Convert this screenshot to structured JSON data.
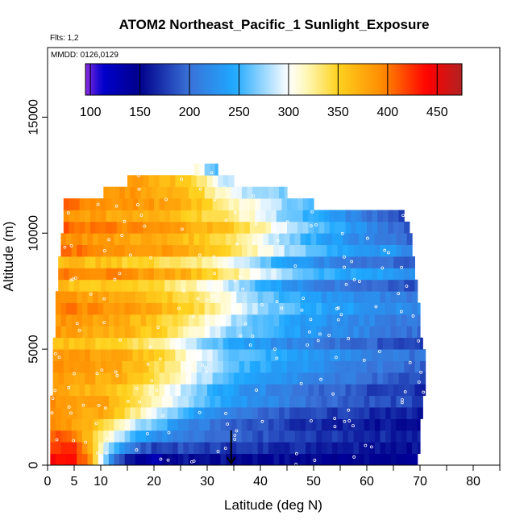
{
  "chart_data": {
    "type": "heatmap",
    "title": "ATOM2 Northeast_Pacific_1 Sunlight_Exposure",
    "flights_note": "Flts: 1,2",
    "dates_note": "MMDD: 0126,0129",
    "xlabel": "Latitude (deg N)",
    "ylabel": "Altitude (m)",
    "xlim": [
      0,
      85
    ],
    "ylim": [
      0,
      18000
    ],
    "x_ticks": [
      0,
      5,
      10,
      20,
      30,
      40,
      50,
      60,
      70,
      80
    ],
    "x_minor_ticks": [
      15,
      25,
      35,
      45,
      55,
      65,
      75,
      85
    ],
    "y_ticks": [
      0,
      5000,
      10000,
      15000
    ],
    "grid": false,
    "colorbar": {
      "position": "top-inset",
      "ticks": [
        100,
        150,
        200,
        250,
        300,
        350,
        400,
        450
      ],
      "range": [
        95,
        475
      ],
      "stops": [
        {
          "v": 95,
          "c": "#8B2BE2"
        },
        {
          "v": 112,
          "c": "#0000CD"
        },
        {
          "v": 150,
          "c": "#00008B"
        },
        {
          "v": 200,
          "c": "#3A72D8"
        },
        {
          "v": 245,
          "c": "#1EA8FF"
        },
        {
          "v": 300,
          "c": "#FFFFFF"
        },
        {
          "v": 320,
          "c": "#FFF6B0"
        },
        {
          "v": 350,
          "c": "#FFD21E"
        },
        {
          "v": 395,
          "c": "#FF8A00"
        },
        {
          "v": 440,
          "c": "#FF0000"
        },
        {
          "v": 475,
          "c": "#B22222"
        }
      ]
    },
    "field": {
      "bands": [
        {
          "alt": [
            0,
            500
          ],
          "lat": [
            0.5,
            69.5
          ]
        },
        {
          "alt": [
            500,
            1000
          ],
          "lat": [
            0.5,
            70
          ]
        },
        {
          "alt": [
            1000,
            1500
          ],
          "lat": [
            0.5,
            70
          ]
        },
        {
          "alt": [
            1500,
            2000
          ],
          "lat": [
            0.5,
            70
          ]
        },
        {
          "alt": [
            2000,
            2500
          ],
          "lat": [
            0.5,
            70.5
          ]
        },
        {
          "alt": [
            2500,
            3000
          ],
          "lat": [
            0.5,
            70.5
          ]
        },
        {
          "alt": [
            3000,
            3500
          ],
          "lat": [
            1,
            71
          ]
        },
        {
          "alt": [
            3500,
            4000
          ],
          "lat": [
            1,
            71
          ]
        },
        {
          "alt": [
            4000,
            4500
          ],
          "lat": [
            1,
            71
          ]
        },
        {
          "alt": [
            4500,
            5000
          ],
          "lat": [
            1,
            71
          ]
        },
        {
          "alt": [
            5000,
            5500
          ],
          "lat": [
            1,
            70.5
          ]
        },
        {
          "alt": [
            5500,
            6000
          ],
          "lat": [
            1.5,
            70
          ]
        },
        {
          "alt": [
            6000,
            6500
          ],
          "lat": [
            1.5,
            70
          ]
        },
        {
          "alt": [
            6500,
            7000
          ],
          "lat": [
            1.5,
            70
          ]
        },
        {
          "alt": [
            7000,
            7500
          ],
          "lat": [
            1.5,
            69.5
          ]
        },
        {
          "alt": [
            7500,
            8000
          ],
          "lat": [
            2,
            69.5
          ]
        },
        {
          "alt": [
            8000,
            8500
          ],
          "lat": [
            2,
            69
          ]
        },
        {
          "alt": [
            8500,
            9000
          ],
          "lat": [
            2,
            69
          ]
        },
        {
          "alt": [
            9000,
            9500
          ],
          "lat": [
            2.5,
            68.5
          ]
        },
        {
          "alt": [
            9500,
            10000
          ],
          "lat": [
            2.5,
            68.5
          ]
        },
        {
          "alt": [
            10000,
            10500
          ],
          "lat": [
            3,
            68
          ]
        },
        {
          "alt": [
            10500,
            11000
          ],
          "lat": [
            3,
            67
          ]
        },
        {
          "alt": [
            11000,
            11500
          ],
          "lat": [
            3,
            50
          ]
        },
        {
          "alt": [
            11500,
            12000
          ],
          "lat": [
            10.5,
            45
          ]
        },
        {
          "alt": [
            12000,
            12500
          ],
          "lat": [
            15,
            35
          ]
        },
        {
          "alt": [
            12500,
            13000
          ],
          "lat": [
            27.5,
            32
          ]
        }
      ],
      "profile": [
        {
          "alt": 0,
          "pts": [
            [
              0,
              460
            ],
            [
              5,
              450
            ],
            [
              8,
              400
            ],
            [
              10,
              300
            ],
            [
              12,
              200
            ],
            [
              15,
              145
            ],
            [
              20,
              110
            ],
            [
              25,
              150
            ],
            [
              35,
              150
            ],
            [
              50,
              150
            ],
            [
              70,
              145
            ]
          ]
        },
        {
          "alt": 1000,
          "pts": [
            [
              0,
              405
            ],
            [
              5,
              395
            ],
            [
              8,
              340
            ],
            [
              12,
              280
            ],
            [
              17,
              200
            ],
            [
              25,
              180
            ],
            [
              35,
              170
            ],
            [
              50,
              160
            ],
            [
              70,
              150
            ]
          ]
        },
        {
          "alt": 2000,
          "pts": [
            [
              0,
              395
            ],
            [
              10,
              380
            ],
            [
              15,
              340
            ],
            [
              20,
              300
            ],
            [
              25,
              250
            ],
            [
              35,
              210
            ],
            [
              50,
              180
            ],
            [
              70,
              165
            ]
          ]
        },
        {
          "alt": 3500,
          "pts": [
            [
              0,
              380
            ],
            [
              15,
              360
            ],
            [
              22,
              320
            ],
            [
              28,
              280
            ],
            [
              35,
              245
            ],
            [
              50,
              210
            ],
            [
              60,
              190
            ],
            [
              70,
              175
            ]
          ]
        },
        {
          "alt": 5000,
          "pts": [
            [
              0,
              380
            ],
            [
              15,
              360
            ],
            [
              22,
              330
            ],
            [
              28,
              290
            ],
            [
              35,
              250
            ],
            [
              50,
              220
            ],
            [
              60,
              205
            ],
            [
              70,
              190
            ]
          ]
        },
        {
          "alt": 7000,
          "pts": [
            [
              0,
              385
            ],
            [
              20,
              360
            ],
            [
              28,
              330
            ],
            [
              33,
              300
            ],
            [
              40,
              260
            ],
            [
              50,
              230
            ],
            [
              60,
              215
            ],
            [
              70,
              200
            ]
          ]
        },
        {
          "alt": 9000,
          "pts": [
            [
              0,
              390
            ],
            [
              25,
              360
            ],
            [
              33,
              335
            ],
            [
              38,
              305
            ],
            [
              45,
              260
            ],
            [
              55,
              230
            ],
            [
              68,
              215
            ]
          ]
        },
        {
          "alt": 10500,
          "pts": [
            [
              0,
              395
            ],
            [
              25,
              365
            ],
            [
              35,
              340
            ],
            [
              40,
              310
            ],
            [
              47,
              260
            ],
            [
              55,
              225
            ],
            [
              62,
              190
            ],
            [
              68,
              165
            ]
          ]
        },
        {
          "alt": 12000,
          "pts": [
            [
              0,
              385
            ],
            [
              20,
              360
            ],
            [
              28,
              330
            ],
            [
              32,
              290
            ],
            [
              37,
              255
            ],
            [
              45,
              240
            ],
            [
              50,
              235
            ]
          ]
        },
        {
          "alt": 13000,
          "pts": [
            [
              0,
              370
            ],
            [
              27,
              350
            ],
            [
              29,
              310
            ],
            [
              30,
              280
            ],
            [
              32,
              250
            ]
          ]
        }
      ]
    },
    "annotations": [
      {
        "type": "arrow",
        "description": "downward arrow",
        "x": 34.5,
        "y_from": 1500,
        "y_to": 0
      }
    ]
  }
}
